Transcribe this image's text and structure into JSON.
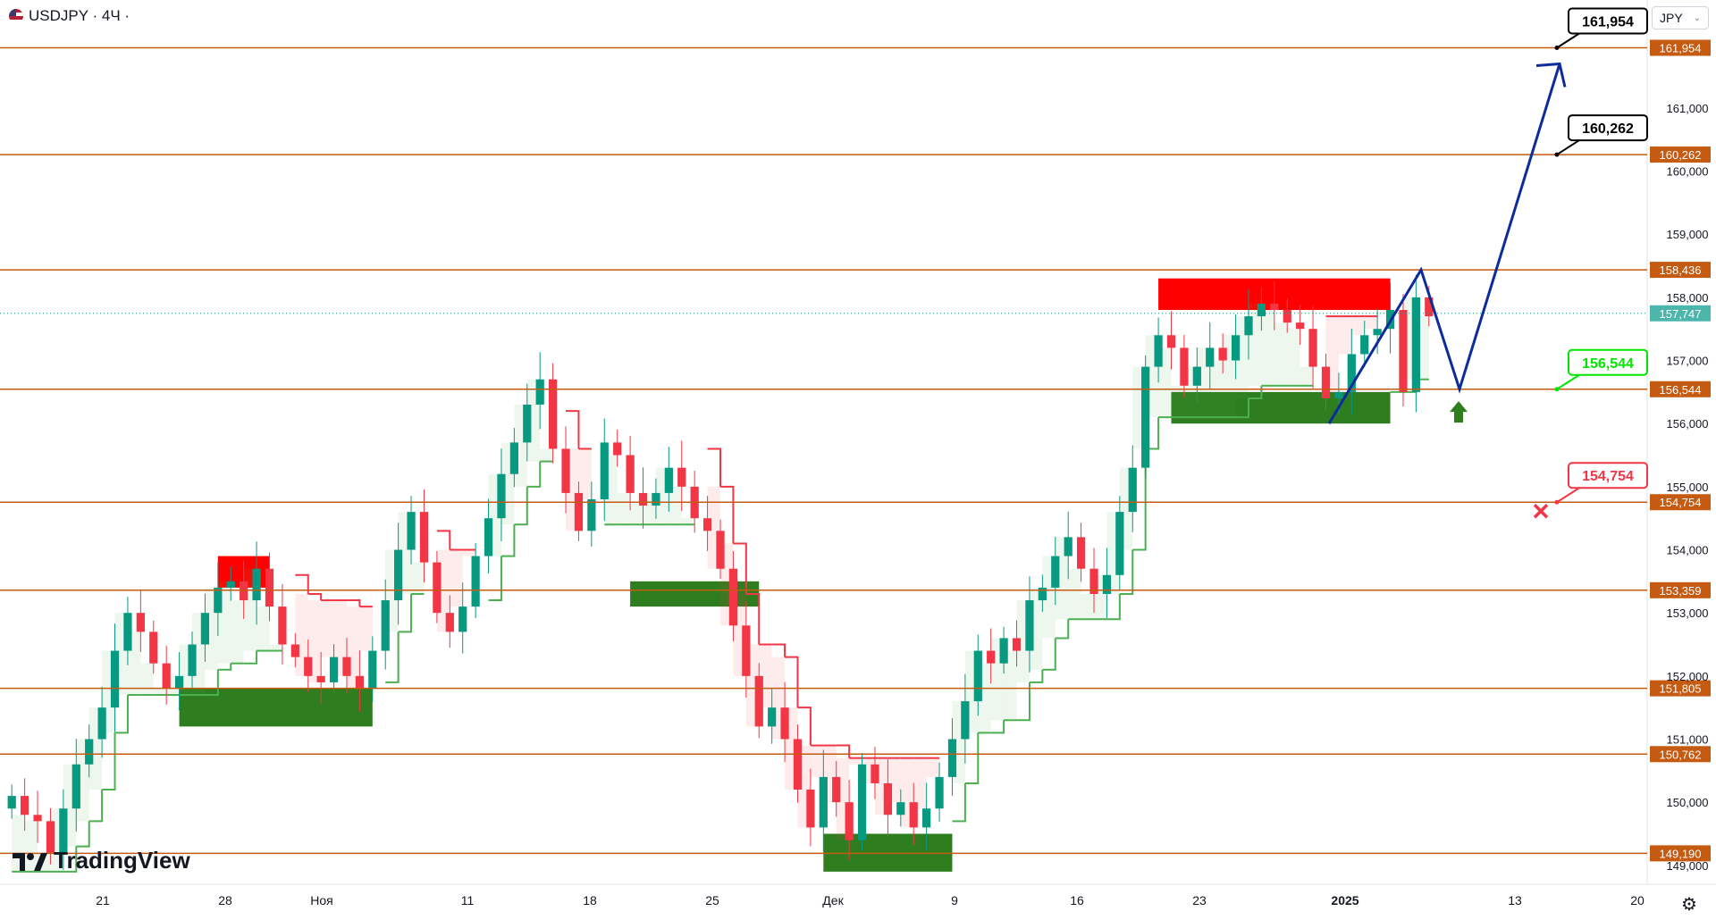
{
  "header": {
    "symbol_label": "USDJPY · 4Ч ·",
    "currency_button": "JPY",
    "brand": "TradingView"
  },
  "colors": {
    "level_line": "#c55a11",
    "bull": "#089981",
    "bear": "#f23645",
    "supertrend_up": "#4caf50",
    "supertrend_down": "#f23645",
    "demand_zone": "#2e7d1f",
    "supply_zone": "#ff0000",
    "projection": "#0d2c9c"
  },
  "chart_data": {
    "type": "candlestick",
    "symbol": "USDJPY",
    "timeframe": "4Ч",
    "ylim": [
      148.7,
      162.4
    ],
    "x_ticks": [
      "21",
      "28",
      "Ноя",
      "11",
      "18",
      "25",
      "Дек",
      "9",
      "16",
      "23",
      "2025",
      "13",
      "20"
    ],
    "y_ticks": [
      "149,000",
      "150,000",
      "151,000",
      "152,000",
      "153,000",
      "154,000",
      "155,000",
      "156,000",
      "157,000",
      "158,000",
      "159,000",
      "160,000",
      "161,000"
    ],
    "current_price": 157.747,
    "current_price_label": "157,747",
    "levels": [
      {
        "value": 161.954,
        "label": "161,954",
        "callout": "161,954"
      },
      {
        "value": 160.262,
        "label": "160,262",
        "callout": "160,262"
      },
      {
        "value": 158.436,
        "label": "158,436"
      },
      {
        "value": 156.544,
        "label": "156,544",
        "callout": "156,544",
        "callout_color": "#00e600"
      },
      {
        "value": 154.754,
        "label": "154,754",
        "callout": "154,754",
        "callout_color": "#f23645"
      },
      {
        "value": 153.359,
        "label": "153,359"
      },
      {
        "value": 151.805,
        "label": "151,805"
      },
      {
        "value": 150.762,
        "label": "150,762"
      },
      {
        "value": 149.19,
        "label": "149,190"
      }
    ],
    "closes": [
      150.1,
      149.8,
      149.7,
      149.2,
      149.9,
      150.6,
      151.0,
      151.5,
      152.4,
      153.0,
      152.7,
      152.2,
      151.8,
      152.0,
      152.5,
      153.0,
      153.4,
      153.5,
      153.2,
      153.7,
      153.1,
      152.5,
      152.3,
      152.0,
      151.9,
      152.3,
      152.0,
      151.8,
      152.4,
      153.2,
      154.0,
      154.6,
      153.8,
      153.0,
      152.7,
      153.1,
      153.9,
      154.5,
      155.2,
      155.7,
      156.3,
      156.7,
      155.6,
      154.9,
      154.3,
      154.8,
      155.7,
      155.5,
      154.9,
      154.7,
      154.9,
      155.3,
      155.0,
      154.5,
      154.3,
      153.7,
      152.8,
      152.0,
      151.2,
      151.5,
      151.0,
      150.2,
      149.6,
      150.4,
      150.0,
      149.4,
      150.6,
      150.3,
      149.8,
      150.0,
      149.6,
      149.9,
      150.4,
      151.0,
      151.6,
      152.4,
      152.2,
      152.6,
      152.4,
      153.2,
      153.4,
      153.9,
      154.2,
      153.7,
      153.3,
      153.6,
      154.6,
      155.3,
      156.9,
      157.4,
      157.2,
      156.6,
      156.9,
      157.2,
      157.0,
      157.4,
      157.7,
      157.9,
      157.8,
      157.6,
      157.5,
      156.9,
      156.4,
      156.5,
      157.1,
      157.4,
      157.5,
      157.8,
      156.5,
      158.0,
      157.7
    ],
    "supply_zones": [
      {
        "from_bar": 16,
        "to_bar": 20,
        "low": 153.4,
        "high": 153.9
      },
      {
        "from_bar": 89,
        "to_bar": 107,
        "low": 157.8,
        "high": 158.3
      }
    ],
    "demand_zones": [
      {
        "from_bar": 13,
        "to_bar": 28,
        "low": 151.2,
        "high": 151.8
      },
      {
        "from_bar": 48,
        "to_bar": 58,
        "low": 153.1,
        "high": 153.5
      },
      {
        "from_bar": 63,
        "to_bar": 73,
        "low": 148.9,
        "high": 149.5
      },
      {
        "from_bar": 90,
        "to_bar": 107,
        "low": 156.0,
        "high": 156.5
      }
    ],
    "projection": [
      156.0,
      158.436,
      156.544,
      161.7
    ],
    "projection_label": "",
    "annotations": {
      "long_arrow_at": 156.1,
      "stop_cross_at": 154.754
    }
  }
}
